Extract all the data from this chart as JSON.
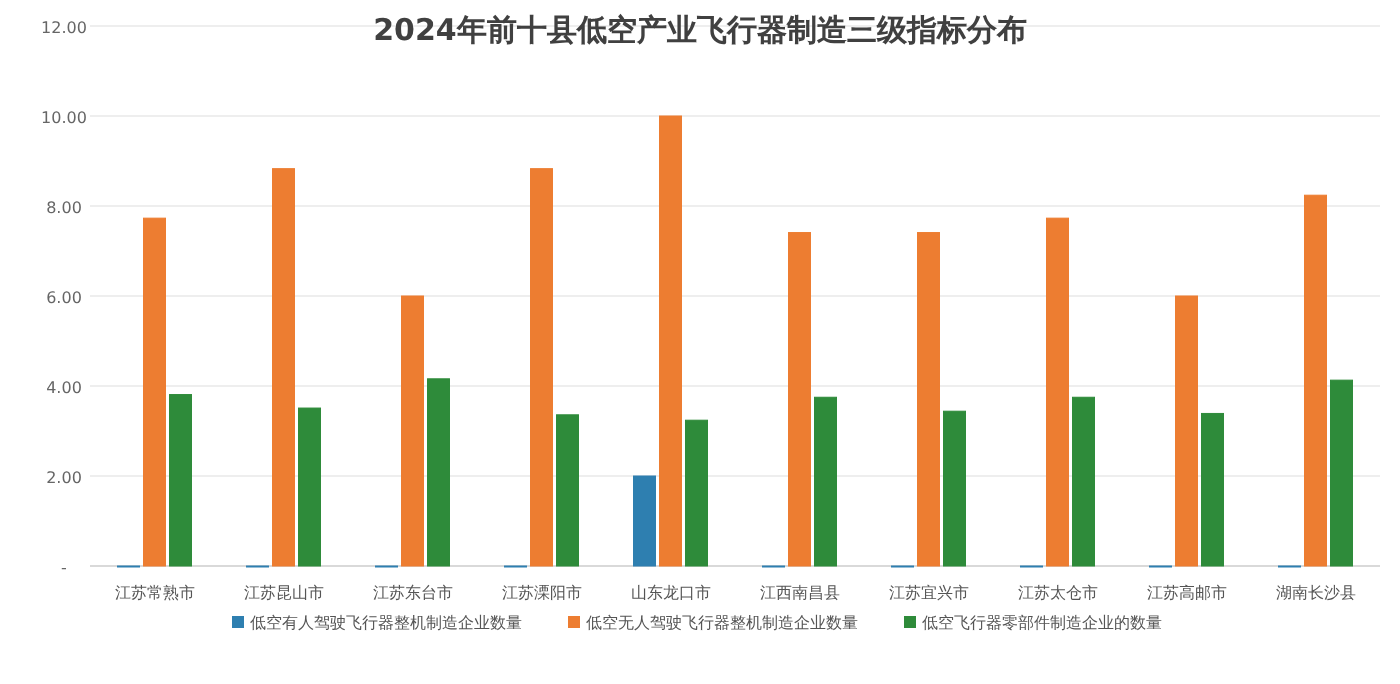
{
  "chart_data": {
    "type": "bar",
    "title": "2024年前十县低空产业飞行器制造三级指标分布",
    "categories": [
      "江苏常熟市",
      "江苏昆山市",
      "江苏东台市",
      "江苏溧阳市",
      "山东龙口市",
      "江西南昌县",
      "江苏宜兴市",
      "江苏太仓市",
      "江苏高邮市",
      "湖南长沙县"
    ],
    "series": [
      {
        "name": "低空有人驾驶飞行器整机制造企业数量",
        "color": "#2e7fb0",
        "values": [
          0,
          0,
          0,
          0,
          2,
          0,
          0,
          0,
          0,
          0
        ]
      },
      {
        "name": "低空无人驾驶飞行器整机制造企业数量",
        "color": "#ed7d31",
        "values": [
          7.73,
          8.83,
          6,
          8.83,
          10,
          7.41,
          7.41,
          7.73,
          6,
          8.24
        ]
      },
      {
        "name": "低空飞行器零部件制造企业的数量",
        "color": "#2e8b3a",
        "values": [
          3.81,
          3.51,
          4.16,
          3.36,
          3.24,
          3.75,
          3.44,
          3.75,
          3.39,
          4.13
        ]
      }
    ],
    "ylim": [
      0,
      12
    ],
    "yticks": [
      {
        "value": 0,
        "label": "-"
      },
      {
        "value": 2,
        "label": "2.00"
      },
      {
        "value": 4,
        "label": "4.00"
      },
      {
        "value": 6,
        "label": "6.00"
      },
      {
        "value": 8,
        "label": "8.00"
      },
      {
        "value": 10,
        "label": "10.00"
      },
      {
        "value": 12,
        "label": "12.00"
      }
    ],
    "grid": "y",
    "legend": "bottom"
  }
}
